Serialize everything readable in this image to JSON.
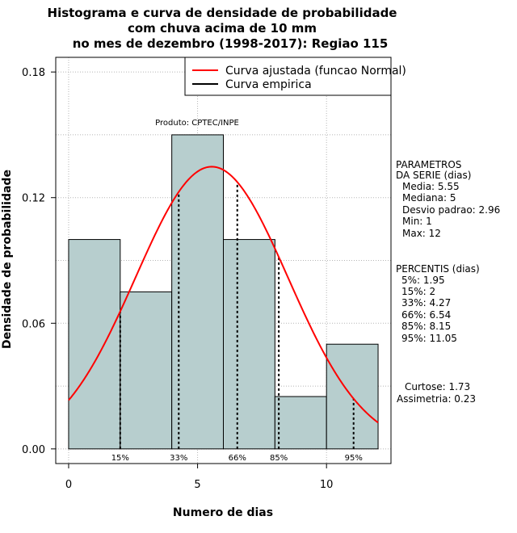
{
  "chart_data": {
    "type": "bar",
    "title_lines": [
      "Histograma e curva de densidade de probabilidade",
      "com chuva acima de 10 mm",
      "no mes de dezembro (1998-2017): Regiao 115"
    ],
    "xlabel": "Numero de dias",
    "ylabel": "Densidade de probabilidade",
    "xlim": [
      -0.5,
      12.5
    ],
    "ylim": [
      -0.007,
      0.187
    ],
    "xticks": [
      0,
      5,
      10
    ],
    "xtick_labels": [
      "0",
      "5",
      "10"
    ],
    "yticks": [
      0.0,
      0.06,
      0.12,
      0.18
    ],
    "ytick_labels": [
      "0.00",
      "0.06",
      "0.12",
      "0.18"
    ],
    "grid": true,
    "bins": [
      {
        "start": 0,
        "end": 2,
        "density": 0.1
      },
      {
        "start": 2,
        "end": 4,
        "density": 0.075
      },
      {
        "start": 4,
        "end": 6,
        "density": 0.15
      },
      {
        "start": 6,
        "end": 8,
        "density": 0.1
      },
      {
        "start": 8,
        "end": 10,
        "density": 0.025
      },
      {
        "start": 10,
        "end": 12,
        "density": 0.05
      }
    ],
    "bar_color": "#b7cece",
    "fitted_curve": {
      "type": "normal",
      "mean": 5.55,
      "sd": 2.96,
      "x_min": 0,
      "x_max": 12,
      "color": "#ff0000"
    },
    "percentiles": [
      {
        "label": "15%",
        "x": 2.0
      },
      {
        "label": "33%",
        "x": 4.27
      },
      {
        "label": "66%",
        "x": 6.54
      },
      {
        "label": "85%",
        "x": 8.15
      },
      {
        "label": "95%",
        "x": 11.05
      }
    ],
    "legend": {
      "position": "top-right",
      "entries": [
        {
          "label": "Curva ajustada (funcao Normal)",
          "color": "#ff0000"
        },
        {
          "label": "Curva empirica",
          "color": "#000000"
        }
      ]
    },
    "annotation": "Produto: CPTEC/INPE",
    "parameters": {
      "heading": [
        "PARAMETROS",
        "DA SERIE (dias)"
      ],
      "lines": [
        "Media: 5.55",
        "Mediana: 5",
        "Desvio padrao: 2.96",
        "Min: 1",
        "Max: 12"
      ]
    },
    "percentis": {
      "heading": "PERCENTIS (dias)",
      "lines": [
        "5%: 1.95",
        "15%: 2",
        "33%: 4.27",
        "66%: 6.54",
        "85%: 8.15",
        "95%: 11.05"
      ]
    },
    "shape": {
      "lines": [
        "Curtose: 1.73",
        "Assimetria: 0.23"
      ]
    }
  }
}
